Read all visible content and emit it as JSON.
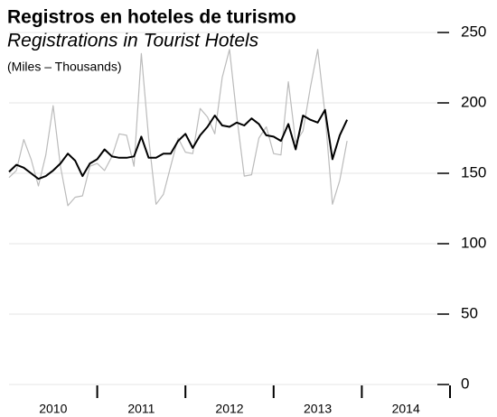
{
  "chart_data": {
    "type": "line",
    "title": "Registros en hoteles de turismo",
    "subtitle": "Registrations in Tourist Hotels",
    "unit_note": "(Miles – Thousands)",
    "x": [
      "2010-01",
      "2010-02",
      "2010-03",
      "2010-04",
      "2010-05",
      "2010-06",
      "2010-07",
      "2010-08",
      "2010-09",
      "2010-10",
      "2010-11",
      "2010-12",
      "2011-01",
      "2011-02",
      "2011-03",
      "2011-04",
      "2011-05",
      "2011-06",
      "2011-07",
      "2011-08",
      "2011-09",
      "2011-10",
      "2011-11",
      "2011-12",
      "2012-01",
      "2012-02",
      "2012-03",
      "2012-04",
      "2012-05",
      "2012-06",
      "2012-07",
      "2012-08",
      "2012-09",
      "2012-10",
      "2012-11",
      "2012-12",
      "2013-01",
      "2013-02",
      "2013-03",
      "2013-04",
      "2013-05",
      "2013-06",
      "2013-07",
      "2013-08",
      "2013-09",
      "2013-10",
      "2013-11"
    ],
    "series": [
      {
        "color": "#bbbbbb",
        "width": 1.2,
        "values": [
          147,
          152,
          174,
          160,
          141,
          163,
          198,
          155,
          127,
          133,
          134,
          155,
          157,
          152,
          162,
          178,
          177,
          155,
          235,
          175,
          128,
          135,
          155,
          175,
          165,
          164,
          196,
          190,
          178,
          218,
          238,
          190,
          148,
          149,
          175,
          183,
          164,
          163,
          215,
          172,
          180,
          211,
          238,
          192,
          128,
          145,
          173
        ]
      },
      {
        "color": "#000000",
        "width": 2,
        "values": [
          151,
          156,
          154,
          150,
          146,
          148,
          152,
          157,
          164,
          159,
          148,
          157,
          160,
          167,
          162,
          161,
          161,
          162,
          176,
          161,
          161,
          164,
          164,
          173,
          178,
          168,
          177,
          183,
          191,
          184,
          183,
          186,
          184,
          189,
          185,
          177,
          176,
          173,
          185,
          167,
          191,
          188,
          186,
          195,
          160,
          177,
          188
        ]
      }
    ],
    "xlim": [
      2010,
      2015
    ],
    "xticks": [
      2010,
      2011,
      2012,
      2013,
      2014
    ],
    "ylim": [
      0,
      250
    ],
    "yticks": [
      0,
      50,
      100,
      150,
      200,
      250
    ],
    "grid": true
  }
}
